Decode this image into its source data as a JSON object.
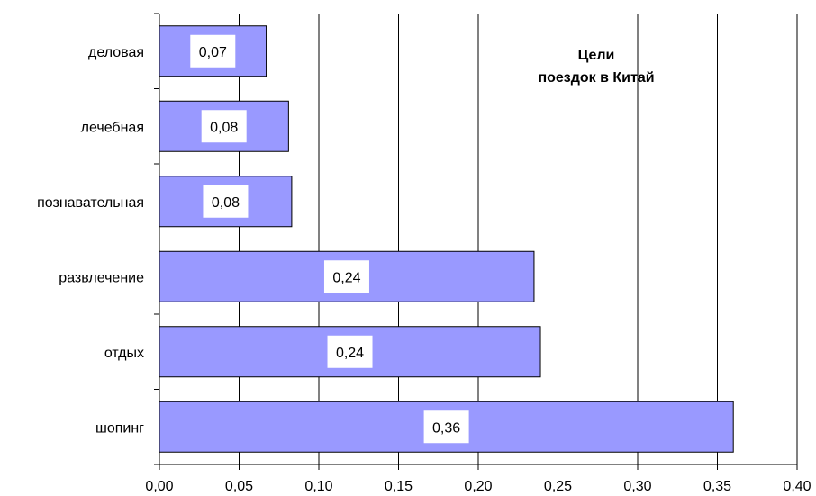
{
  "chart_data": {
    "type": "bar",
    "orientation": "horizontal",
    "title_lines": [
      "Цели",
      "поездок в Китай"
    ],
    "categories": [
      "деловая",
      "лечебная",
      "познавательная",
      "развлечение",
      "отдых",
      "шопинг"
    ],
    "values": [
      0.067,
      0.081,
      0.083,
      0.235,
      0.239,
      0.36
    ],
    "data_labels": [
      "0,07",
      "0,08",
      "0,08",
      "0,24",
      "0,24",
      "0,36"
    ],
    "xlim": [
      0,
      0.4
    ],
    "x_ticks": [
      0,
      0.05,
      0.1,
      0.15,
      0.2,
      0.25,
      0.3,
      0.35,
      0.4
    ],
    "x_tick_labels": [
      "0,00",
      "0,05",
      "0,10",
      "0,15",
      "0,20",
      "0,25",
      "0,30",
      "0,35",
      "0,40"
    ],
    "grid": "vertical major lines",
    "bar_color": "#9999ff",
    "bar_border_color": "#000000",
    "label_box_color": "#ffffff"
  }
}
